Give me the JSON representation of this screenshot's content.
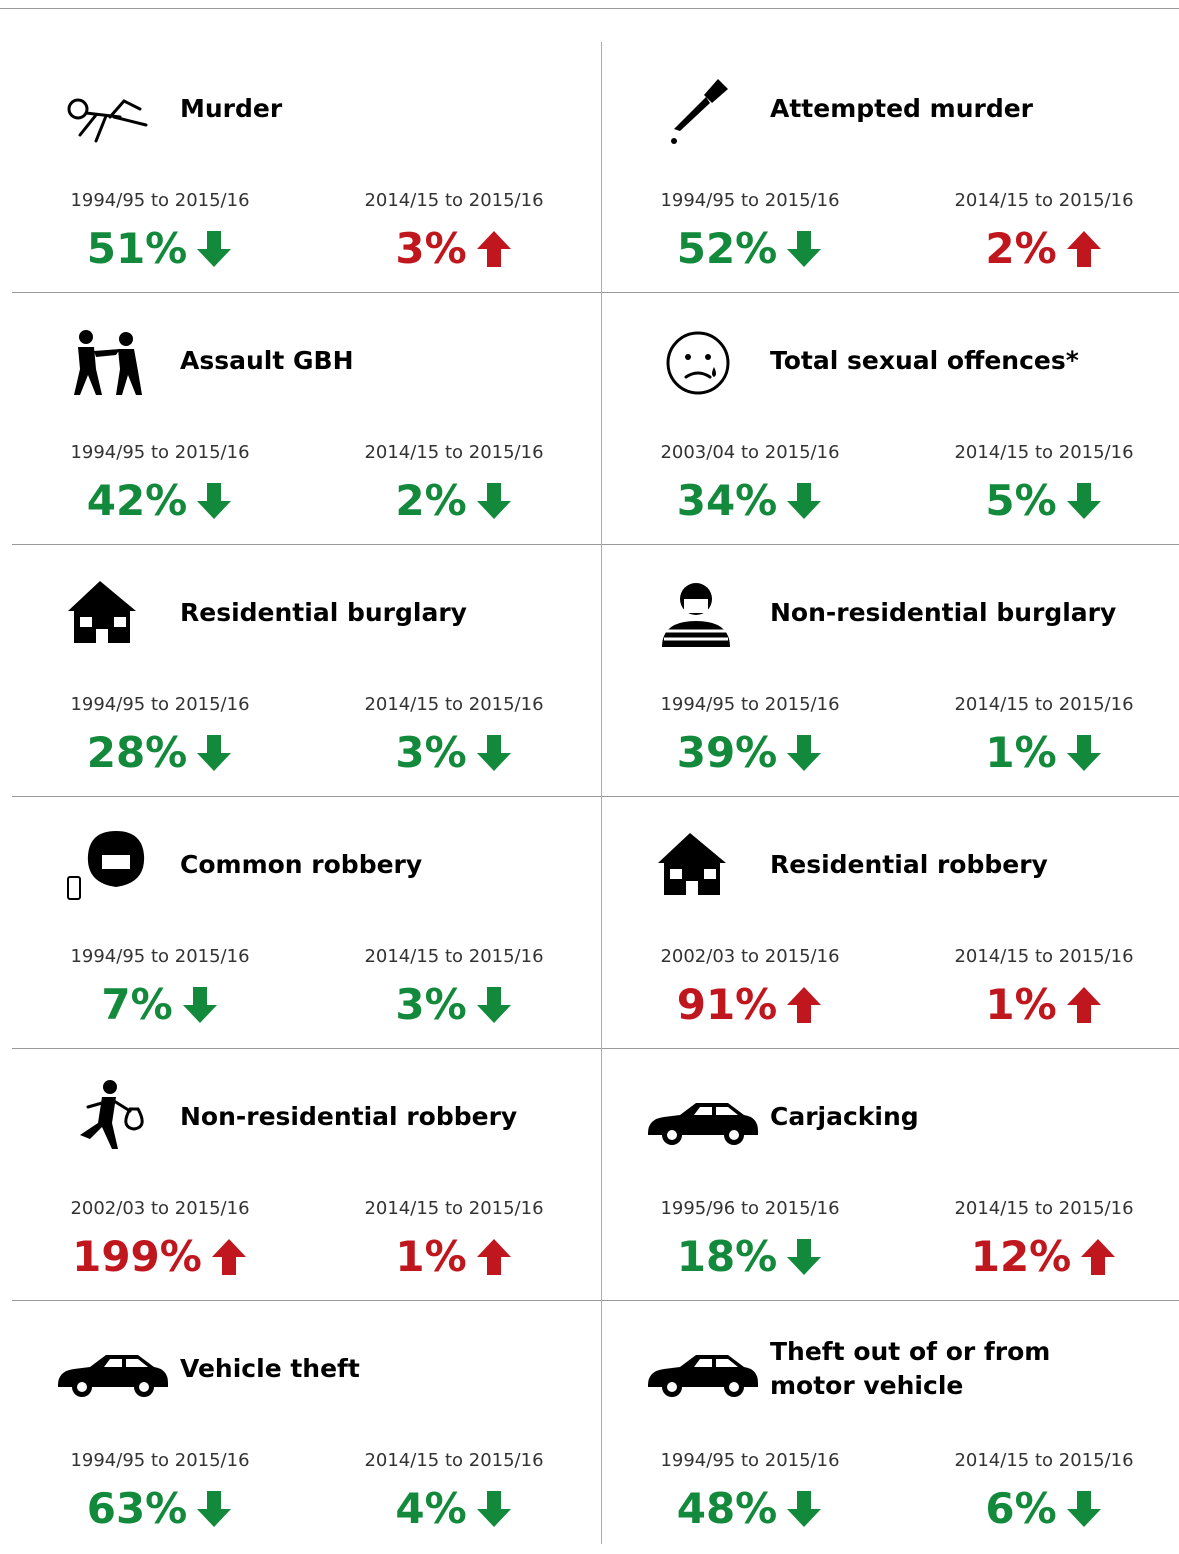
{
  "cells": [
    {
      "label": "Murder",
      "stats": [
        {
          "period": "1994/95 to 2015/16",
          "value": "51%",
          "direction": "down"
        },
        {
          "period": "2014/15 to 2015/16",
          "value": "3%",
          "direction": "up"
        }
      ]
    },
    {
      "label": "Attempted murder",
      "stats": [
        {
          "period": "1994/95 to 2015/16",
          "value": "52%",
          "direction": "down"
        },
        {
          "period": "2014/15 to 2015/16",
          "value": "2%",
          "direction": "up"
        }
      ]
    },
    {
      "label": "Assault GBH",
      "stats": [
        {
          "period": "1994/95 to 2015/16",
          "value": "42%",
          "direction": "down"
        },
        {
          "period": "2014/15 to 2015/16",
          "value": "2%",
          "direction": "down"
        }
      ]
    },
    {
      "label": "Total sexual offences*",
      "stats": [
        {
          "period": "2003/04 to 2015/16",
          "value": "34%",
          "direction": "down"
        },
        {
          "period": "2014/15 to 2015/16",
          "value": "5%",
          "direction": "down"
        }
      ]
    },
    {
      "label": "Residential burglary",
      "stats": [
        {
          "period": "1994/95 to 2015/16",
          "value": "28%",
          "direction": "down"
        },
        {
          "period": "2014/15 to 2015/16",
          "value": "3%",
          "direction": "down"
        }
      ]
    },
    {
      "label": "Non-residential burglary",
      "stats": [
        {
          "period": "1994/95 to 2015/16",
          "value": "39%",
          "direction": "down"
        },
        {
          "period": "2014/15 to 2015/16",
          "value": "1%",
          "direction": "down"
        }
      ]
    },
    {
      "label": "Common robbery",
      "stats": [
        {
          "period": "1994/95 to 2015/16",
          "value": "7%",
          "direction": "down"
        },
        {
          "period": "2014/15 to 2015/16",
          "value": "3%",
          "direction": "down"
        }
      ]
    },
    {
      "label": "Residential robbery",
      "stats": [
        {
          "period": "2002/03 to 2015/16",
          "value": "91%",
          "direction": "up"
        },
        {
          "period": "2014/15 to 2015/16",
          "value": "1%",
          "direction": "up"
        }
      ]
    },
    {
      "label": "Non-residential robbery",
      "stats": [
        {
          "period": "2002/03 to 2015/16",
          "value": "199%",
          "direction": "up"
        },
        {
          "period": "2014/15 to 2015/16",
          "value": "1%",
          "direction": "up"
        }
      ]
    },
    {
      "label": "Carjacking",
      "stats": [
        {
          "period": "1995/96 to 2015/16",
          "value": "18%",
          "direction": "down"
        },
        {
          "period": "2014/15 to 2015/16",
          "value": "12%",
          "direction": "up"
        }
      ]
    },
    {
      "label": "Vehicle theft",
      "stats": [
        {
          "period": "1994/95 to 2015/16",
          "value": "63%",
          "direction": "down"
        },
        {
          "period": "2014/15 to 2015/16",
          "value": "4%",
          "direction": "down"
        }
      ]
    },
    {
      "label": "Theft out of or from\nmotor vehicle",
      "stats": [
        {
          "period": "1994/95 to 2015/16",
          "value": "48%",
          "direction": "down"
        },
        {
          "period": "2014/15 to 2015/16",
          "value": "6%",
          "direction": "down"
        }
      ]
    }
  ]
}
